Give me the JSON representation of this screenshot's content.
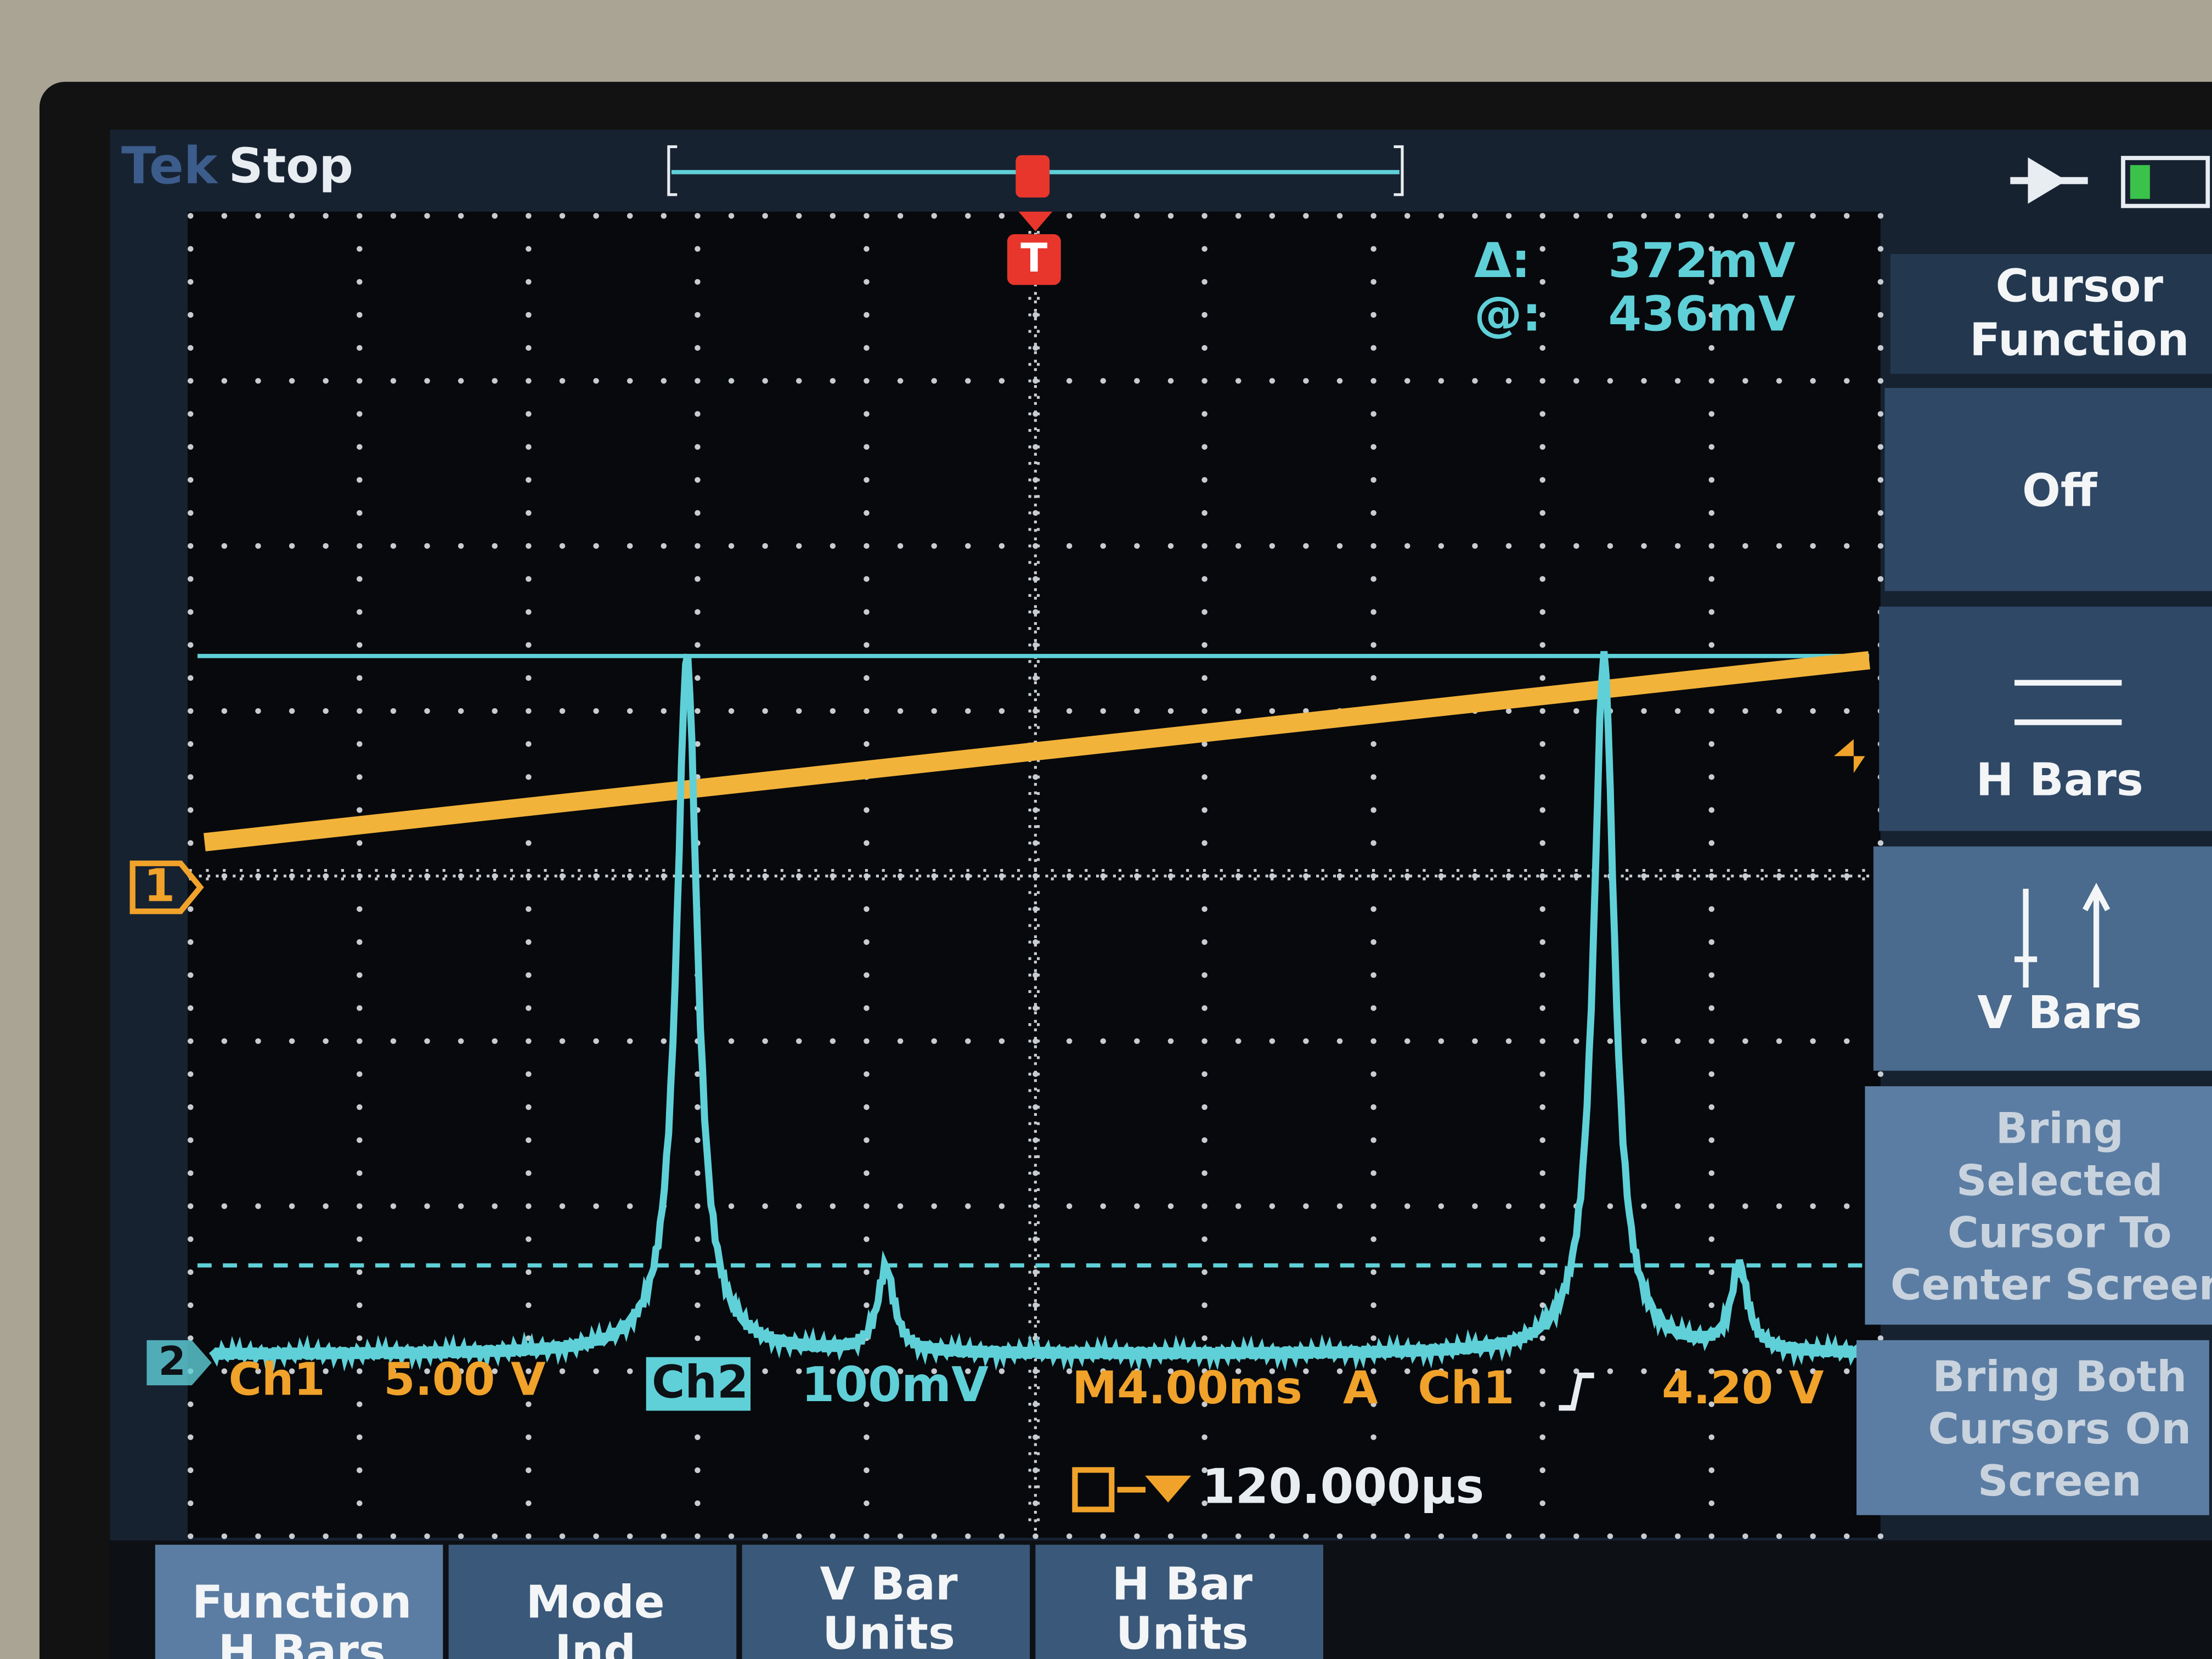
{
  "header": {
    "brand": "Tek",
    "status": "Stop"
  },
  "readout": {
    "delta_label": "Δ:",
    "delta_value": "372mV",
    "at_label": "@:",
    "at_value": "436mV"
  },
  "side_menu": {
    "title": [
      "Cursor",
      "Function"
    ],
    "items": [
      {
        "lines": [
          "Off"
        ]
      },
      {
        "lines": [
          "H Bars"
        ]
      },
      {
        "lines": [
          "V Bars"
        ]
      },
      {
        "lines": [
          "Bring",
          "Selected",
          "Cursor To",
          "Center Screen"
        ]
      },
      {
        "lines": [
          "Bring Both",
          "Cursors On",
          "Screen"
        ]
      }
    ]
  },
  "status_bar": {
    "ch1": "Ch1",
    "ch1_scale": "5.00 V",
    "ch2": "Ch2",
    "ch2_scale": "100mV",
    "timebase": "M4.00ms",
    "trigger_mode": "A",
    "trigger_source": "Ch1",
    "trigger_level": "4.20 V",
    "trigger_offset": "120.000µs"
  },
  "markers": {
    "ch1": "1",
    "ch2": "2",
    "trigger": "T"
  },
  "bottom_menu": [
    {
      "lines": [
        "Function",
        "H Bars"
      ]
    },
    {
      "lines": [
        "Mode",
        "Ind"
      ]
    },
    {
      "lines": [
        "V Bar",
        "Units"
      ]
    },
    {
      "lines": [
        "H Bar",
        "Units"
      ]
    }
  ]
}
